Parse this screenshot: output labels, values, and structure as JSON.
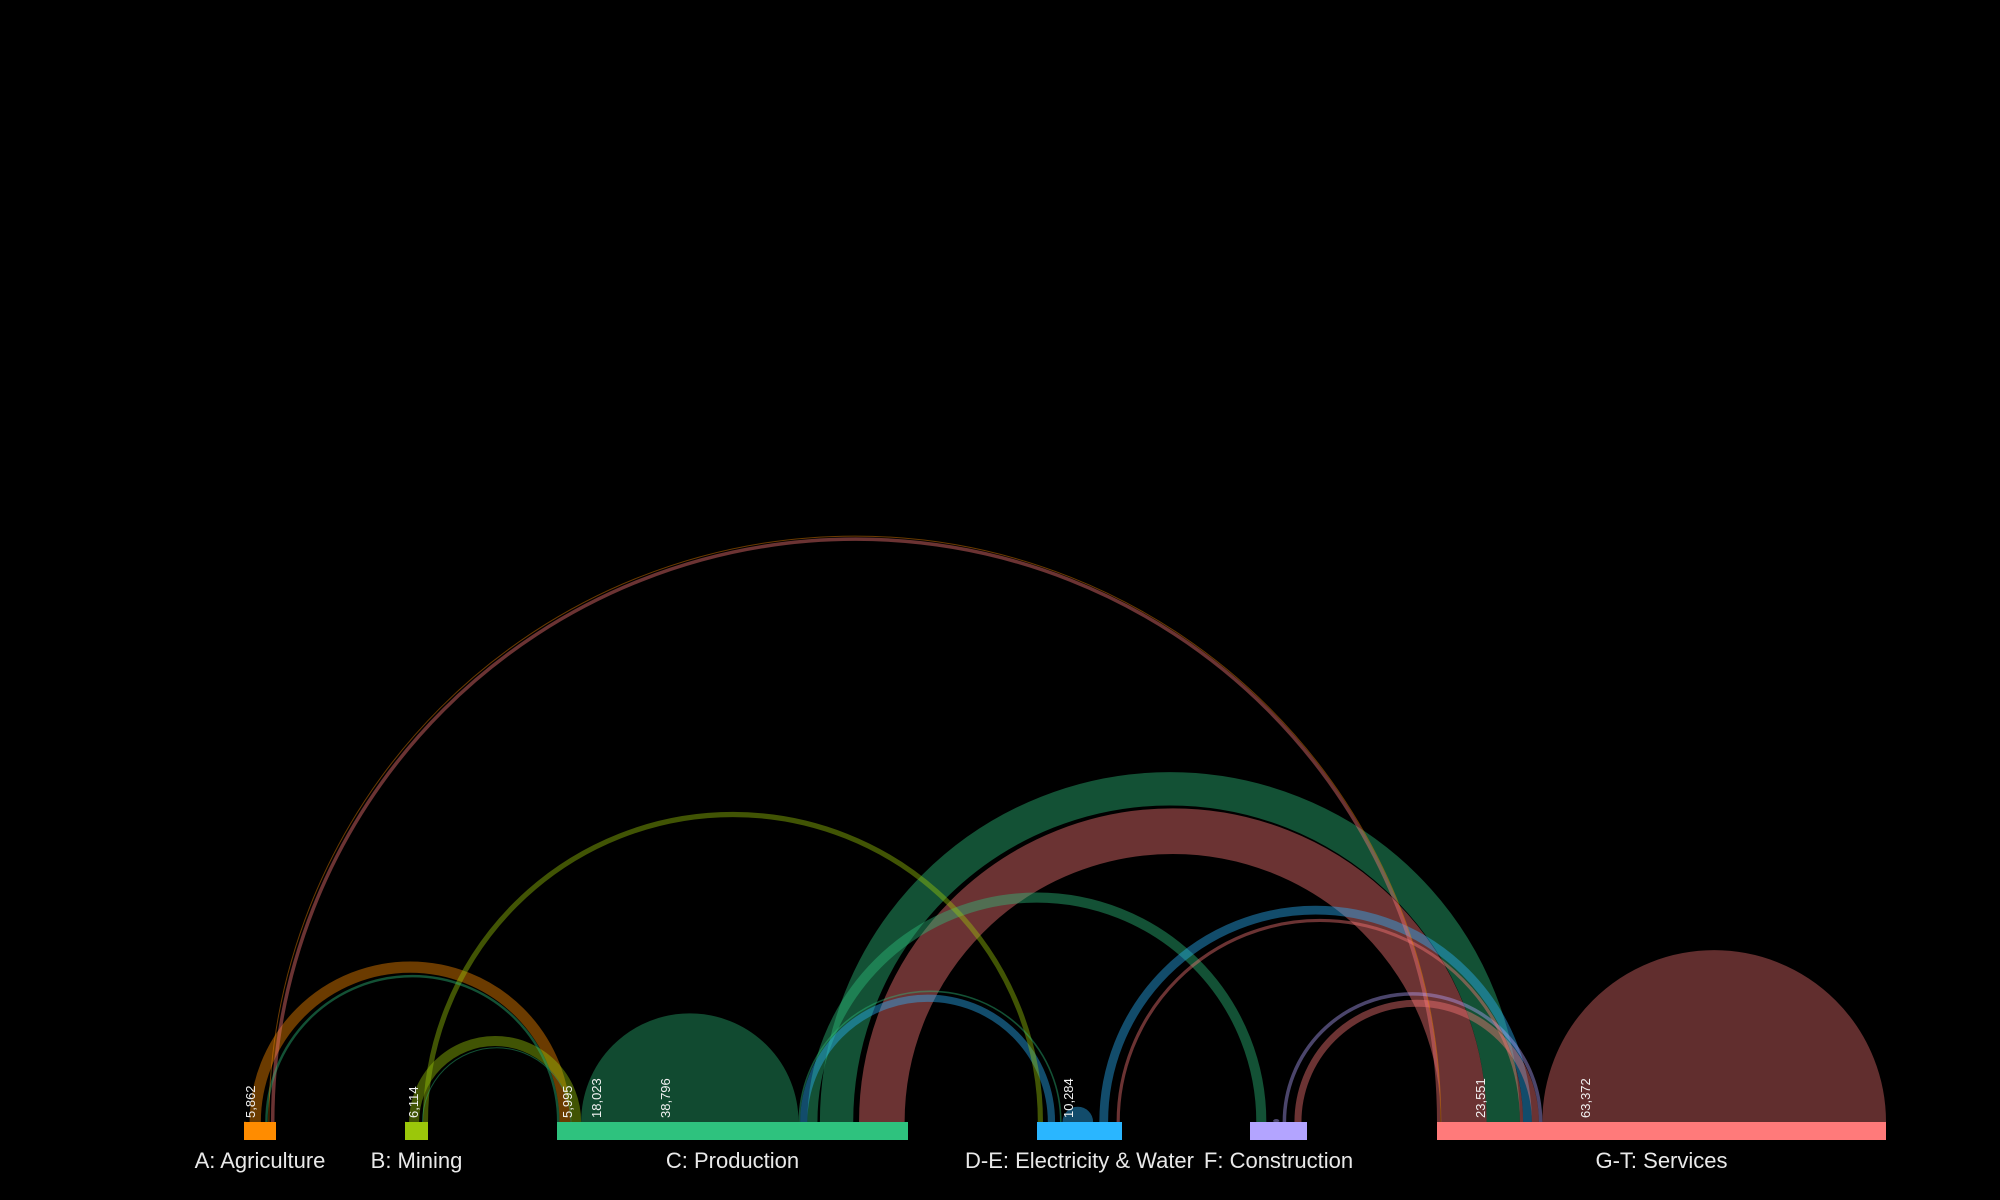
{
  "sectors": [
    {
      "id": "A",
      "label": "A: Agriculture",
      "color": "#ff8c00"
    },
    {
      "id": "B",
      "label": "B: Mining",
      "color": "#9bc70a"
    },
    {
      "id": "C",
      "label": "C: Production",
      "color": "#2ec27e"
    },
    {
      "id": "DE",
      "label": "D-E: Electricity & Water",
      "color": "#2ab6ff"
    },
    {
      "id": "F",
      "label": "F: Construction",
      "color": "#b3a4ff"
    },
    {
      "id": "GT",
      "label": "G-T: Services",
      "color": "#ff7a7a"
    }
  ],
  "value_labels": [
    "5,862",
    "6,114",
    "5,995",
    "18,023",
    "38,796",
    "10,284",
    "23,551",
    "63,372"
  ],
  "flows": [
    {
      "from": "A",
      "to": "GT",
      "value": 150
    },
    {
      "from": "A",
      "to": "C",
      "value": 2800
    },
    {
      "from": "A",
      "to": "A",
      "value": 150
    },
    {
      "from": "C",
      "to": "A",
      "value": 600
    },
    {
      "from": "GT",
      "to": "A",
      "value": 1000
    },
    {
      "from": "B",
      "to": "C",
      "value": 2500
    },
    {
      "from": "B",
      "to": "DE",
      "value": 800
    },
    {
      "from": "B",
      "to": "B",
      "value": 80
    },
    {
      "from": "C",
      "to": "B",
      "value": 100
    },
    {
      "from": "C",
      "to": "GT",
      "value": 9500
    },
    {
      "from": "C",
      "to": "F",
      "value": 2500
    },
    {
      "from": "C",
      "to": "C",
      "value": 27000
    },
    {
      "from": "C",
      "to": "DE",
      "value": 400
    },
    {
      "from": "GT",
      "to": "C",
      "value": 13000
    },
    {
      "from": "DE",
      "to": "C",
      "value": 1800
    },
    {
      "from": "DE",
      "to": "GT",
      "value": 2500
    },
    {
      "from": "DE",
      "to": "DE",
      "value": 1800
    },
    {
      "from": "GT",
      "to": "DE",
      "value": 900
    },
    {
      "from": "F",
      "to": "GT",
      "value": 1000
    },
    {
      "from": "F",
      "to": "F",
      "value": 400
    },
    {
      "from": "GT",
      "to": "F",
      "value": 2000
    },
    {
      "from": "GT",
      "to": "GT",
      "value": 49000
    }
  ]
}
